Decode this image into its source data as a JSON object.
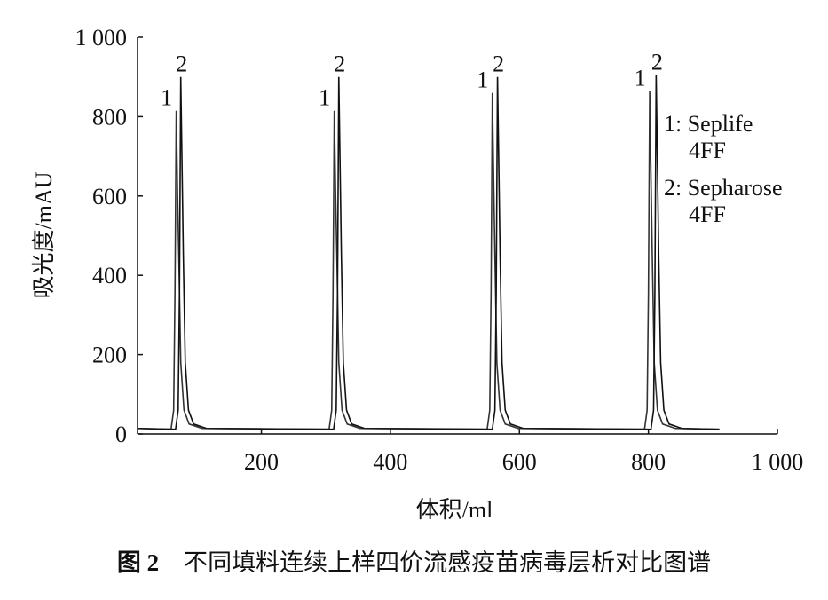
{
  "chart_data": {
    "type": "line",
    "x_label": "体积/ml",
    "y_label": "吸光度/mAU",
    "xlim": [
      8,
      1000
    ],
    "ylim": [
      0,
      1000
    ],
    "xticks": [
      200,
      400,
      600,
      800,
      {
        "value": 1000,
        "label": "1 000"
      }
    ],
    "yticks": [
      0,
      200,
      400,
      600,
      800,
      {
        "value": 1000,
        "label": "1 000"
      }
    ],
    "series": [
      {
        "name": "1: Seplife\n4FF",
        "peak_label": "1",
        "color": "#333333",
        "x": [
          8,
          60,
          64,
          66,
          68,
          70,
          72,
          75,
          80,
          88,
          108,
          305,
          309,
          311,
          313,
          315,
          317,
          320,
          325,
          333,
          353,
          550,
          554,
          556,
          558,
          560,
          562,
          565,
          570,
          578,
          598,
          794,
          798,
          800,
          802,
          804,
          806,
          809,
          814,
          822,
          842,
          910
        ],
        "values": [
          14,
          12,
          60,
          350,
          815,
          610,
          450,
          180,
          60,
          25,
          14,
          12,
          60,
          350,
          815,
          610,
          450,
          180,
          60,
          25,
          14,
          12,
          60,
          350,
          860,
          645,
          450,
          180,
          60,
          25,
          14,
          12,
          60,
          350,
          865,
          650,
          450,
          180,
          60,
          25,
          14,
          12
        ]
      },
      {
        "name": "2: Sepharose\n4FF",
        "peak_label": "2",
        "color": "#111111",
        "x": [
          8,
          67,
          71,
          73,
          75,
          77,
          79,
          82,
          87,
          95,
          115,
          312,
          316,
          318,
          320,
          322,
          324,
          327,
          332,
          340,
          360,
          558,
          562,
          564,
          566,
          568,
          570,
          573,
          578,
          586,
          606,
          804,
          808,
          810,
          812,
          814,
          816,
          819,
          824,
          832,
          852,
          910
        ],
        "values": [
          14,
          12,
          60,
          350,
          900,
          675,
          450,
          180,
          60,
          25,
          14,
          12,
          60,
          350,
          900,
          675,
          450,
          180,
          60,
          25,
          14,
          12,
          60,
          350,
          900,
          675,
          450,
          180,
          60,
          25,
          14,
          12,
          60,
          350,
          905,
          680,
          450,
          180,
          60,
          25,
          14,
          12
        ]
      }
    ]
  },
  "caption": {
    "label": "图 2",
    "text": "不同填料连续上样四价流感疫苗病毒层析对比图谱"
  }
}
